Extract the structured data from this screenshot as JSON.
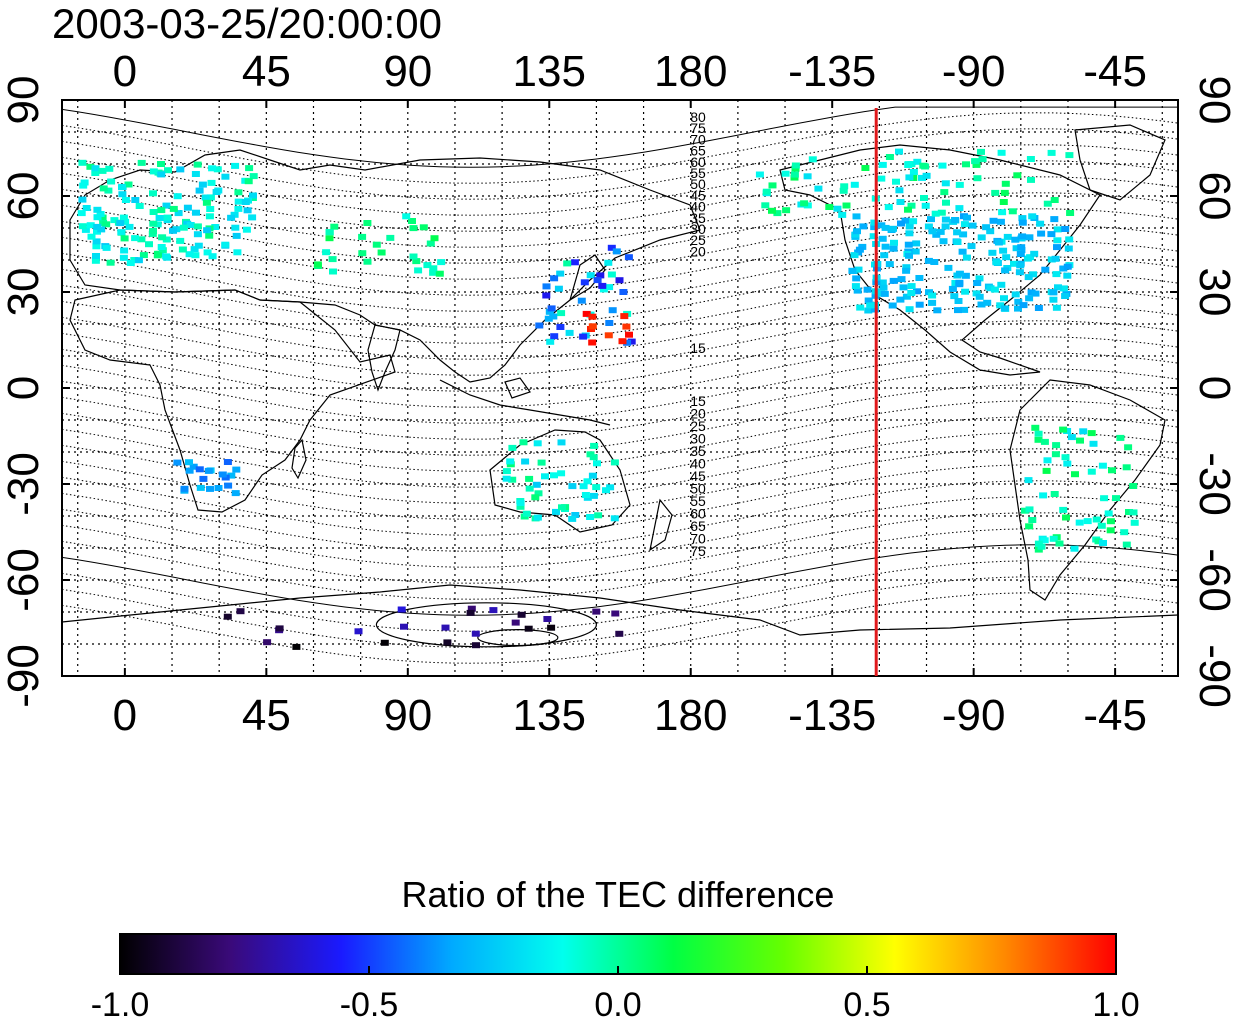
{
  "title": "2003-03-25/20:00:00",
  "map": {
    "lon_ticks_top": [
      "0",
      "45",
      "90",
      "135",
      "180",
      "-135",
      "-90",
      "-45"
    ],
    "lon_ticks_bottom": [
      "0",
      "45",
      "90",
      "135",
      "180",
      "-135",
      "-90",
      "-45"
    ],
    "lat_ticks_left": [
      "90",
      "60",
      "30",
      "0",
      "-30",
      "-60",
      "-90"
    ],
    "lat_ticks_right": [
      "90",
      "60",
      "30",
      "0",
      "-30",
      "-60",
      "-90"
    ],
    "lon_values": [
      0,
      45,
      90,
      135,
      180,
      225,
      270,
      315
    ],
    "lat_values": [
      90,
      60,
      30,
      0,
      -30,
      -60,
      -90
    ],
    "lon_range": [
      -20,
      335
    ],
    "lat_range": [
      -90,
      90
    ],
    "red_line_lon": -121,
    "red_line_color": "#e0191c",
    "contour_labels_north": [
      "80",
      "75",
      "70",
      "65",
      "60",
      "55",
      "50",
      "45",
      "40",
      "35",
      "30",
      "25",
      "20",
      "15"
    ],
    "contour_labels_south": [
      "15",
      "20",
      "25",
      "30",
      "35",
      "40",
      "45",
      "50",
      "55",
      "60",
      "65",
      "70",
      "75"
    ]
  },
  "colorbar": {
    "title": "Ratio of the TEC difference",
    "tick_labels": [
      "-1.0",
      "-0.5",
      "0.0",
      "0.5",
      "1.0"
    ],
    "tick_values": [
      -1.0,
      -0.5,
      0.0,
      0.5,
      1.0
    ],
    "colors": [
      "#000000",
      "#3a0a7a",
      "#1a1aff",
      "#00aaff",
      "#00ffee",
      "#00ff44",
      "#66ff00",
      "#ffff00",
      "#ff8800",
      "#ff0000"
    ]
  }
}
